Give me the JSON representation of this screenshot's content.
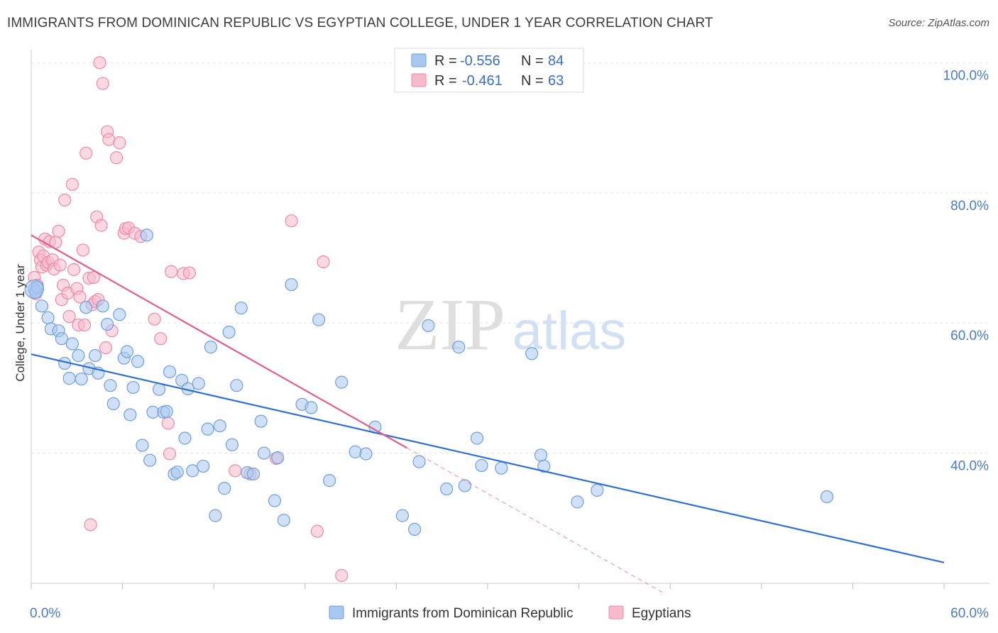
{
  "header": {
    "title": "IMMIGRANTS FROM DOMINICAN REPUBLIC VS EGYPTIAN COLLEGE, UNDER 1 YEAR CORRELATION CHART",
    "source": "Source: ZipAtlas.com"
  },
  "watermark": {
    "zip": "ZIP",
    "atlas": "atlas"
  },
  "colors": {
    "blue_fill": "#a9c8f0",
    "blue_stroke": "#6f9fdc",
    "blue_line": "#2f6fcf",
    "pink_fill": "#f7b9cc",
    "pink_stroke": "#ee8aa9",
    "pink_line": "#e0608c",
    "grid": "#e3e3e3",
    "tick_text": "#4a7cc4"
  },
  "legend": {
    "rows": [
      {
        "r_label": "R =",
        "r_value": "-0.556",
        "n_label": "N =",
        "n_value": "84"
      },
      {
        "r_label": "R =",
        "r_value": "-0.461",
        "n_label": "N =",
        "n_value": "63"
      }
    ]
  },
  "chart_data": {
    "type": "scatter",
    "title": "IMMIGRANTS FROM DOMINICAN REPUBLIC VS EGYPTIAN COLLEGE, UNDER 1 YEAR CORRELATION CHART",
    "xlabel": "",
    "ylabel": "College, Under 1 year",
    "xlim": [
      0,
      60
    ],
    "ylim": [
      20,
      102
    ],
    "x_tick_labels": [
      "0.0%",
      "60.0%"
    ],
    "y_ticks": [
      40,
      60,
      80,
      100
    ],
    "y_tick_labels": [
      "40.0%",
      "60.0%",
      "80.0%",
      "100.0%"
    ],
    "grid": true,
    "legend_position": "top-center",
    "series": [
      {
        "name": "Immigrants from Dominican Republic",
        "color": "#a9c8f0",
        "trend": {
          "x": [
            0,
            60
          ],
          "y": [
            55.2,
            23.2
          ]
        },
        "points": [
          [
            0.2,
            65.2
          ],
          [
            0.3,
            64.8
          ],
          [
            0.4,
            65.5
          ],
          [
            0.7,
            62.6
          ],
          [
            1.1,
            60.8
          ],
          [
            1.3,
            59.1
          ],
          [
            1.8,
            58.8
          ],
          [
            2.0,
            57.6
          ],
          [
            2.2,
            53.8
          ],
          [
            2.5,
            51.5
          ],
          [
            2.7,
            56.8
          ],
          [
            3.1,
            55.0
          ],
          [
            3.3,
            51.4
          ],
          [
            3.6,
            62.4
          ],
          [
            3.8,
            53.0
          ],
          [
            4.2,
            55.0
          ],
          [
            4.4,
            52.3
          ],
          [
            4.7,
            62.6
          ],
          [
            5.0,
            59.8
          ],
          [
            5.2,
            50.4
          ],
          [
            5.4,
            47.6
          ],
          [
            5.8,
            61.3
          ],
          [
            6.1,
            54.6
          ],
          [
            6.3,
            55.6
          ],
          [
            6.5,
            45.9
          ],
          [
            6.7,
            50.1
          ],
          [
            7.0,
            54.1
          ],
          [
            7.3,
            41.2
          ],
          [
            7.6,
            73.5
          ],
          [
            7.8,
            38.9
          ],
          [
            8.0,
            46.3
          ],
          [
            8.4,
            49.8
          ],
          [
            8.7,
            46.3
          ],
          [
            8.9,
            46.4
          ],
          [
            9.1,
            52.5
          ],
          [
            9.4,
            36.8
          ],
          [
            9.6,
            37.1
          ],
          [
            9.9,
            51.2
          ],
          [
            10.1,
            42.3
          ],
          [
            10.3,
            49.9
          ],
          [
            10.6,
            37.3
          ],
          [
            11.0,
            50.7
          ],
          [
            11.3,
            38.0
          ],
          [
            11.6,
            43.7
          ],
          [
            11.8,
            56.3
          ],
          [
            12.1,
            30.4
          ],
          [
            12.4,
            44.2
          ],
          [
            12.7,
            34.6
          ],
          [
            13.0,
            58.6
          ],
          [
            13.2,
            41.3
          ],
          [
            13.5,
            50.4
          ],
          [
            13.8,
            62.3
          ],
          [
            14.2,
            37.0
          ],
          [
            14.6,
            36.8
          ],
          [
            15.1,
            44.9
          ],
          [
            15.3,
            40.0
          ],
          [
            16.0,
            32.7
          ],
          [
            16.2,
            39.3
          ],
          [
            16.6,
            29.7
          ],
          [
            17.1,
            65.9
          ],
          [
            17.8,
            47.5
          ],
          [
            18.4,
            47.0
          ],
          [
            18.9,
            60.5
          ],
          [
            19.6,
            35.8
          ],
          [
            20.4,
            50.9
          ],
          [
            21.3,
            40.2
          ],
          [
            22.0,
            39.9
          ],
          [
            22.6,
            44.0
          ],
          [
            24.4,
            30.4
          ],
          [
            25.2,
            28.3
          ],
          [
            25.5,
            38.7
          ],
          [
            26.1,
            59.6
          ],
          [
            27.3,
            34.5
          ],
          [
            28.1,
            56.3
          ],
          [
            28.5,
            35.0
          ],
          [
            29.3,
            42.3
          ],
          [
            29.6,
            38.1
          ],
          [
            30.9,
            37.7
          ],
          [
            32.9,
            55.3
          ],
          [
            33.5,
            39.7
          ],
          [
            33.7,
            38.0
          ],
          [
            35.9,
            32.5
          ],
          [
            37.2,
            34.3
          ],
          [
            52.3,
            33.3
          ]
        ]
      },
      {
        "name": "Egyptians",
        "color": "#f7b9cc",
        "trend": {
          "x": [
            0,
            24.7
          ],
          "y": [
            73.5,
            40.8
          ]
        },
        "trend_dashed": {
          "x": [
            24.7,
            41.5
          ],
          "y": [
            40.8,
            18.6
          ]
        },
        "points": [
          [
            0.2,
            67.0
          ],
          [
            0.3,
            64.5
          ],
          [
            0.4,
            65.8
          ],
          [
            0.5,
            70.9
          ],
          [
            0.6,
            69.7
          ],
          [
            0.7,
            68.6
          ],
          [
            0.8,
            70.3
          ],
          [
            0.9,
            72.9
          ],
          [
            1.0,
            68.9
          ],
          [
            1.1,
            69.3
          ],
          [
            1.2,
            72.5
          ],
          [
            1.4,
            69.7
          ],
          [
            1.5,
            68.3
          ],
          [
            1.6,
            72.4
          ],
          [
            1.8,
            74.1
          ],
          [
            1.9,
            68.9
          ],
          [
            2.0,
            63.6
          ],
          [
            2.1,
            65.8
          ],
          [
            2.2,
            78.9
          ],
          [
            2.4,
            64.6
          ],
          [
            2.5,
            61.0
          ],
          [
            2.7,
            81.3
          ],
          [
            2.8,
            68.2
          ],
          [
            3.0,
            65.3
          ],
          [
            3.1,
            59.7
          ],
          [
            3.2,
            64.0
          ],
          [
            3.4,
            71.2
          ],
          [
            3.5,
            59.7
          ],
          [
            3.6,
            86.1
          ],
          [
            3.8,
            66.9
          ],
          [
            3.9,
            29.0
          ],
          [
            4.0,
            62.8
          ],
          [
            4.1,
            67.0
          ],
          [
            4.2,
            63.3
          ],
          [
            4.3,
            76.3
          ],
          [
            4.4,
            63.6
          ],
          [
            4.5,
            100.0
          ],
          [
            4.6,
            75.0
          ],
          [
            4.7,
            96.8
          ],
          [
            4.9,
            56.2
          ],
          [
            5.0,
            89.4
          ],
          [
            5.1,
            88.2
          ],
          [
            5.3,
            58.8
          ],
          [
            5.6,
            85.4
          ],
          [
            5.8,
            87.7
          ],
          [
            6.1,
            73.8
          ],
          [
            6.2,
            74.5
          ],
          [
            6.4,
            74.6
          ],
          [
            6.8,
            73.8
          ],
          [
            7.2,
            73.3
          ],
          [
            8.1,
            60.6
          ],
          [
            8.5,
            57.6
          ],
          [
            9.0,
            44.6
          ],
          [
            9.1,
            39.9
          ],
          [
            9.2,
            67.9
          ],
          [
            10.0,
            67.6
          ],
          [
            10.4,
            67.7
          ],
          [
            13.4,
            37.3
          ],
          [
            14.4,
            36.8
          ],
          [
            16.1,
            39.2
          ],
          [
            17.1,
            75.7
          ],
          [
            18.8,
            28.0
          ],
          [
            19.2,
            69.4
          ],
          [
            20.4,
            21.2
          ]
        ]
      }
    ]
  },
  "bottom_legend": {
    "items": [
      {
        "label": "Immigrants from Dominican Republic"
      },
      {
        "label": "Egyptians"
      }
    ]
  }
}
